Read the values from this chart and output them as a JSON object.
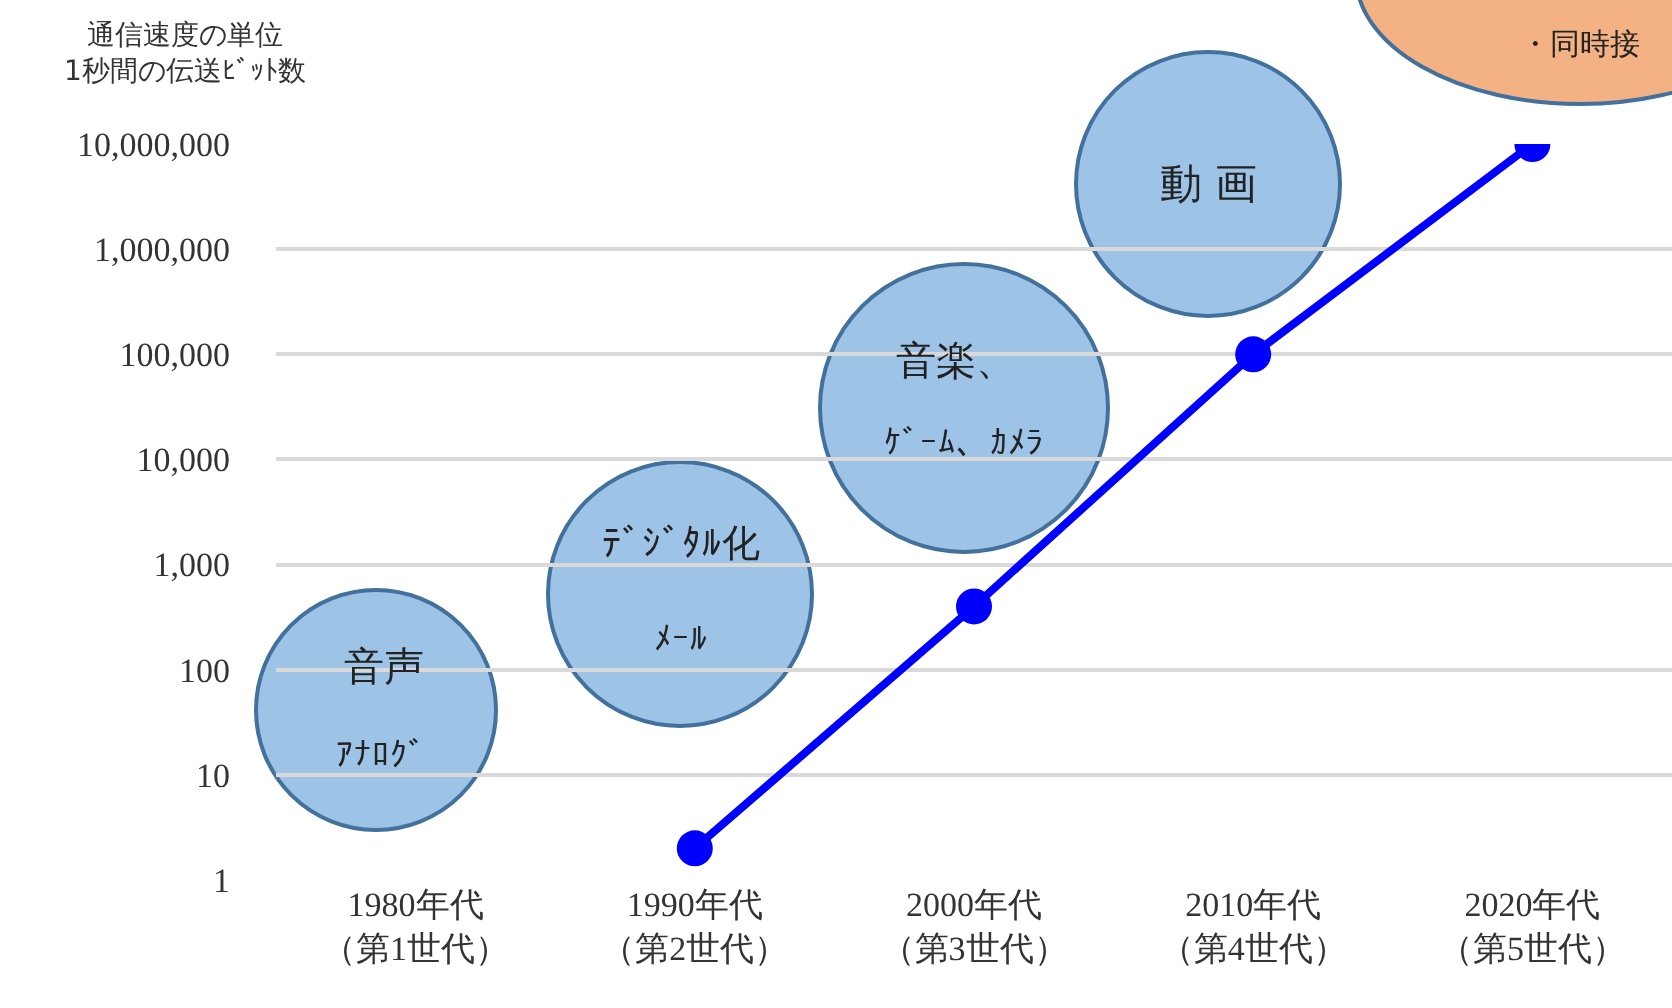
{
  "chart_data": {
    "type": "line",
    "ylabel": "通信速度の単位\n1秒間の伝送ﾋﾞｯﾄ数",
    "categories": [
      "1980年代（第1世代）",
      "1990年代（第2世代）",
      "2000年代（第3世代）",
      "2010年代（第4世代）",
      "2020年代（第5世代）"
    ],
    "series": [
      {
        "color": "#0000ff",
        "values": [
          null,
          2,
          400,
          100000,
          10000000
        ]
      }
    ],
    "log": true,
    "ylim": [
      1,
      10000000
    ],
    "yticks": [
      {
        "value": 1,
        "label": "1"
      },
      {
        "value": 10,
        "label": "10"
      },
      {
        "value": 100,
        "label": "100"
      },
      {
        "value": 1000,
        "label": "1,000"
      },
      {
        "value": 10000,
        "label": "10,000"
      },
      {
        "value": 100000,
        "label": "100,000"
      },
      {
        "value": 1000000,
        "label": "1,000,000"
      },
      {
        "value": 10000000,
        "label": "10,000,000"
      }
    ],
    "grid": "y",
    "marker": "circle",
    "line_style": "solid",
    "annotations": [
      "音声",
      "ｱﾅﾛｸﾞ",
      "ﾃﾞｼﾞﾀﾙ化",
      "ﾒｰﾙ",
      "音楽、",
      "ｹﾞｰﾑ、ｶﾒﾗ",
      "動 画",
      "・同時接"
    ]
  }
}
